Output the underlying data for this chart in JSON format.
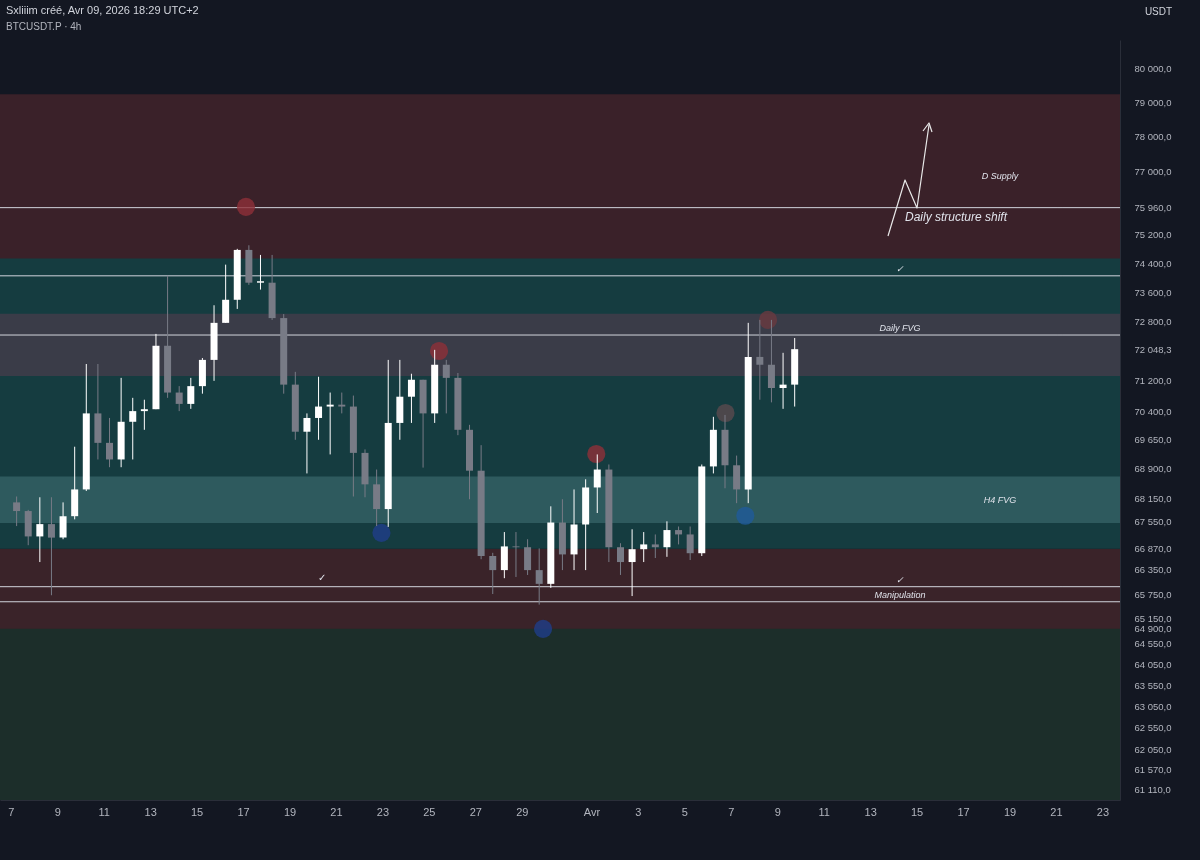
{
  "chart_data": {
    "type": "candlestick",
    "title": "BTCUSDT.P · 4h",
    "subtitle": "Sxliiim créé, Avr 09, 2026 18:29 UTC+2",
    "ylabel": "USDT",
    "log": true,
    "xlim": [
      "2026-03-06T18:00",
      "2026-04-23T13:00"
    ],
    "xticks": [
      {
        "value": "2026-03-07",
        "label": "7"
      },
      {
        "value": "2026-03-09",
        "label": "9"
      },
      {
        "value": "2026-03-11",
        "label": "11"
      },
      {
        "value": "2026-03-13",
        "label": "13"
      },
      {
        "value": "2026-03-15",
        "label": "15"
      },
      {
        "value": "2026-03-17",
        "label": "17"
      },
      {
        "value": "2026-03-19",
        "label": "19"
      },
      {
        "value": "2026-03-21",
        "label": "21"
      },
      {
        "value": "2026-03-23",
        "label": "23"
      },
      {
        "value": "2026-03-25",
        "label": "25"
      },
      {
        "value": "2026-03-27",
        "label": "27"
      },
      {
        "value": "2026-03-29",
        "label": "29"
      },
      {
        "value": "2026-04-01",
        "label": "Avr"
      },
      {
        "value": "2026-04-03",
        "label": "3"
      },
      {
        "value": "2026-04-05",
        "label": "5"
      },
      {
        "value": "2026-04-07",
        "label": "7"
      },
      {
        "value": "2026-04-09",
        "label": "9"
      },
      {
        "value": "2026-04-11",
        "label": "11"
      },
      {
        "value": "2026-04-13",
        "label": "13"
      },
      {
        "value": "2026-04-15",
        "label": "15"
      },
      {
        "value": "2026-04-17",
        "label": "17"
      },
      {
        "value": "2026-04-19",
        "label": "19"
      },
      {
        "value": "2026-04-21",
        "label": "21"
      },
      {
        "value": "2026-04-23",
        "label": "23"
      }
    ],
    "ylim": [
      60880,
      80870
    ],
    "yticks": [
      {
        "value": 80000,
        "label": "80 000,0"
      },
      {
        "value": 79000,
        "label": "79 000,0"
      },
      {
        "value": 78000,
        "label": "78 000,0"
      },
      {
        "value": 77000,
        "label": "77 000,0"
      },
      {
        "value": 75960,
        "label": "75 960,0"
      },
      {
        "value": 75200,
        "label": "75 200,0"
      },
      {
        "value": 74400,
        "label": "74 400,0"
      },
      {
        "value": 73600,
        "label": "73 600,0"
      },
      {
        "value": 72800,
        "label": "72 800,0"
      },
      {
        "value": 72048.3,
        "label": "72 048,3"
      },
      {
        "value": 71200,
        "label": "71 200,0"
      },
      {
        "value": 70400,
        "label": "70 400,0"
      },
      {
        "value": 69650,
        "label": "69 650,0"
      },
      {
        "value": 68900,
        "label": "68 900,0"
      },
      {
        "value": 68150,
        "label": "68 150,0"
      },
      {
        "value": 67550,
        "label": "67 550,0"
      },
      {
        "value": 66870,
        "label": "66 870,0"
      },
      {
        "value": 66350,
        "label": "66 350,0"
      },
      {
        "value": 65750,
        "label": "65 750,0"
      },
      {
        "value": 65150,
        "label": "65 150,0"
      },
      {
        "value": 64900,
        "label": "64 900,0"
      },
      {
        "value": 64550,
        "label": "64 550,0"
      },
      {
        "value": 64050,
        "label": "64 050,0"
      },
      {
        "value": 63550,
        "label": "63 550,0"
      },
      {
        "value": 63050,
        "label": "63 050,0"
      },
      {
        "value": 62550,
        "label": "62 550,0"
      },
      {
        "value": 62050,
        "label": "62 050,0"
      },
      {
        "value": 61570,
        "label": "61 570,0"
      },
      {
        "value": 61110,
        "label": "61 110,0"
      }
    ],
    "x": [
      "2026-03-07T06:00",
      "2026-03-07T18:00",
      "2026-03-08T06:00",
      "2026-03-08T18:00",
      "2026-03-09T06:00",
      "2026-03-09T18:00",
      "2026-03-10T06:00",
      "2026-03-10T18:00",
      "2026-03-11T06:00",
      "2026-03-11T18:00",
      "2026-03-12T06:00",
      "2026-03-12T18:00",
      "2026-03-13T06:00",
      "2026-03-13T18:00",
      "2026-03-14T06:00",
      "2026-03-14T18:00",
      "2026-03-15T06:00",
      "2026-03-15T18:00",
      "2026-03-16T06:00",
      "2026-03-16T18:00",
      "2026-03-17T06:00",
      "2026-03-17T18:00",
      "2026-03-18T06:00",
      "2026-03-18T18:00",
      "2026-03-19T06:00",
      "2026-03-19T18:00",
      "2026-03-20T06:00",
      "2026-03-20T18:00",
      "2026-03-21T06:00",
      "2026-03-21T18:00",
      "2026-03-22T06:00",
      "2026-03-22T18:00",
      "2026-03-23T06:00",
      "2026-03-23T18:00",
      "2026-03-24T06:00",
      "2026-03-24T18:00",
      "2026-03-25T06:00",
      "2026-03-25T18:00",
      "2026-03-26T06:00",
      "2026-03-26T18:00",
      "2026-03-27T06:00",
      "2026-03-27T18:00",
      "2026-03-28T06:00",
      "2026-03-28T18:00",
      "2026-03-29T06:00",
      "2026-03-29T18:00",
      "2026-03-30T06:00",
      "2026-03-30T18:00",
      "2026-03-31T06:00",
      "2026-03-31T18:00",
      "2026-04-01T06:00",
      "2026-04-01T18:00",
      "2026-04-02T06:00",
      "2026-04-02T18:00",
      "2026-04-03T06:00",
      "2026-04-03T18:00",
      "2026-04-04T06:00",
      "2026-04-04T18:00",
      "2026-04-05T06:00",
      "2026-04-05T18:00",
      "2026-04-06T06:00",
      "2026-04-06T18:00",
      "2026-04-07T06:00",
      "2026-04-07T18:00",
      "2026-04-08T06:00",
      "2026-04-08T18:00",
      "2026-04-09T06:00",
      "2026-04-09T18:00"
    ],
    "ohlc": [
      [
        68040,
        68190,
        67440,
        67820
      ],
      [
        67820,
        67850,
        66960,
        67180
      ],
      [
        67180,
        68170,
        66540,
        67490
      ],
      [
        67490,
        68170,
        65720,
        67150
      ],
      [
        67150,
        68040,
        67110,
        67690
      ],
      [
        67690,
        69470,
        67610,
        68370
      ],
      [
        68370,
        71650,
        68330,
        70340
      ],
      [
        70340,
        71650,
        69140,
        69570
      ],
      [
        69570,
        70220,
        68940,
        69140
      ],
      [
        69140,
        71280,
        68940,
        70120
      ],
      [
        70120,
        70750,
        69140,
        70400
      ],
      [
        70400,
        70700,
        69910,
        70450
      ],
      [
        70450,
        72460,
        70450,
        72140
      ],
      [
        72140,
        74050,
        70750,
        70890
      ],
      [
        70890,
        71060,
        70400,
        70590
      ],
      [
        70590,
        71280,
        70460,
        71060
      ],
      [
        71060,
        71810,
        70860,
        71760
      ],
      [
        71760,
        73240,
        71200,
        72760
      ],
      [
        72760,
        74360,
        72760,
        73390
      ],
      [
        73390,
        74800,
        73140,
        74770
      ],
      [
        74770,
        74900,
        73800,
        73860
      ],
      [
        73860,
        74630,
        73670,
        73900
      ],
      [
        73860,
        74630,
        72840,
        72890
      ],
      [
        72890,
        73000,
        70860,
        71100
      ],
      [
        71100,
        71440,
        69650,
        69860
      ],
      [
        69860,
        70340,
        68780,
        70220
      ],
      [
        70220,
        71310,
        69650,
        70520
      ],
      [
        70520,
        70890,
        69270,
        70570
      ],
      [
        70570,
        70890,
        70340,
        70520
      ],
      [
        70520,
        70810,
        68190,
        69310
      ],
      [
        69310,
        69400,
        68170,
        68500
      ],
      [
        68500,
        68880,
        67440,
        67870
      ],
      [
        67870,
        71760,
        67420,
        70090
      ],
      [
        70090,
        71760,
        69650,
        70780
      ],
      [
        70780,
        71390,
        70090,
        71230
      ],
      [
        71230,
        71230,
        68930,
        70340
      ],
      [
        70340,
        72030,
        70090,
        71630
      ],
      [
        71630,
        71760,
        70340,
        71280
      ],
      [
        71280,
        71410,
        69770,
        69910
      ],
      [
        69910,
        70040,
        68120,
        68850
      ],
      [
        68850,
        69510,
        66610,
        66690
      ],
      [
        66690,
        66770,
        65750,
        66340
      ],
      [
        66340,
        67290,
        66140,
        66930
      ],
      [
        66930,
        67290,
        66170,
        66910
      ],
      [
        66910,
        67110,
        66220,
        66340
      ],
      [
        66340,
        66880,
        65490,
        66000
      ],
      [
        66000,
        67940,
        65900,
        67530
      ],
      [
        67530,
        68120,
        66340,
        66730
      ],
      [
        66730,
        68370,
        66340,
        67480
      ],
      [
        67480,
        68630,
        66340,
        68420
      ],
      [
        68420,
        69270,
        67770,
        68880
      ],
      [
        68880,
        69010,
        66540,
        66910
      ],
      [
        66910,
        67010,
        66220,
        66540
      ],
      [
        66540,
        67360,
        65700,
        66860
      ],
      [
        66860,
        67290,
        66540,
        66980
      ],
      [
        66980,
        67230,
        66640,
        66910
      ],
      [
        66910,
        67560,
        66670,
        67340
      ],
      [
        67340,
        67430,
        66980,
        67230
      ],
      [
        67230,
        67430,
        66590,
        66760
      ],
      [
        66760,
        69010,
        66690,
        68960
      ],
      [
        68960,
        70250,
        68780,
        69910
      ],
      [
        69910,
        70300,
        68400,
        68990
      ],
      [
        68990,
        69240,
        68020,
        68370
      ],
      [
        68370,
        72760,
        68020,
        71840
      ],
      [
        71840,
        72840,
        70700,
        71630
      ],
      [
        71630,
        72840,
        70630,
        71010
      ],
      [
        71010,
        71950,
        70460,
        71100
      ],
      [
        71100,
        72350,
        70520,
        72048.3
      ]
    ],
    "series": [
      {
        "type": "scatter",
        "x": [
          "2026-03-17T03:00",
          "2026-03-22T23:00",
          "2026-03-25T10:30",
          "2026-03-29T22:00",
          "2026-04-01T05:00",
          "2026-04-06T18:30",
          "2026-04-07T15:00",
          "2026-04-08T14:30"
        ],
        "values": [
          75980,
          67270,
          72000,
          64900,
          69280,
          70350,
          67700,
          72840
        ],
        "colors": [
          "#8e3038",
          "#1f3d8a",
          "#8e3038",
          "#1f3d8a",
          "#8e3038",
          "#5a4a4e",
          "#1f5a9a",
          "#6a3a40"
        ]
      }
    ],
    "marker": "circle",
    "bands": [
      {
        "axis": "y",
        "from": 60880,
        "to": 65420,
        "color": "#1c2e2a",
        "label": null
      },
      {
        "axis": "y",
        "from": 64900,
        "to": 66870,
        "color": "#3a2329",
        "label": null
      },
      {
        "axis": "y",
        "from": 66870,
        "to": 75960,
        "color": "#153c40",
        "label": null
      },
      {
        "axis": "y",
        "from": 74530,
        "to": 79250,
        "color": "#3a2129",
        "label": "D Supply"
      },
      {
        "axis": "y",
        "from": 71330,
        "to": 73010,
        "color": "#3a3c48",
        "label": null
      },
      {
        "axis": "y",
        "from": 67520,
        "to": 68700,
        "color": "#2e5a5e",
        "label": "H4 FVG"
      }
    ],
    "ref_lines": [
      {
        "axis": "y",
        "value": 75960,
        "label": "Daily structure shift",
        "color": "#d1d4dc"
      },
      {
        "axis": "y",
        "value": 74050,
        "label": "✓",
        "color": "#d1d4dc"
      },
      {
        "axis": "y",
        "value": 72430,
        "label": "Daily FVG",
        "color": "#d1d4dc"
      },
      {
        "axis": "y",
        "value": 65930,
        "label": "✓",
        "color": "#d1d4dc"
      },
      {
        "axis": "y",
        "value": 65560,
        "label": "Manipulation",
        "color": "#d1d4dc"
      }
    ],
    "annotations": [
      "✓"
    ]
  }
}
